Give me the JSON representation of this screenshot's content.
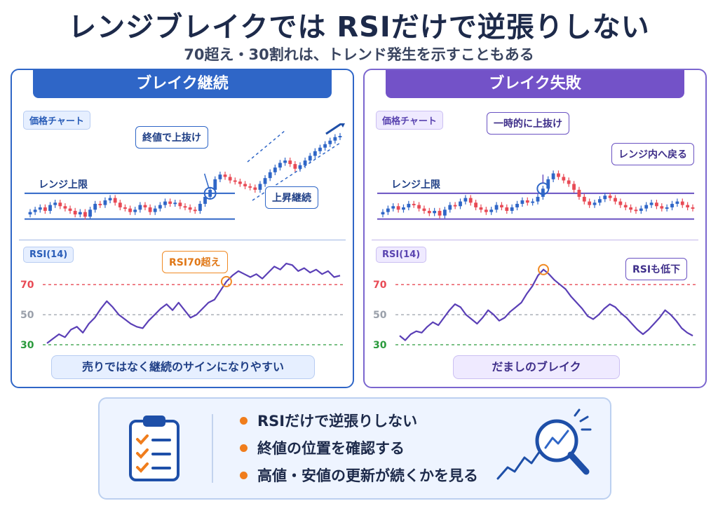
{
  "title": "レンジブレイクでは RSIだけで逆張りしない",
  "subtitle": "70超え・30割れは、トレンド発生を示すこともある",
  "colors": {
    "blue": "#2f66c7",
    "purple": "#7352c8",
    "bull": "#2f66c7",
    "bear": "#e84a55",
    "orange": "#f08a24",
    "rsi_line": "#5a3fb6"
  },
  "left": {
    "header": "ブレイク継続",
    "price_tag": "価格チャート",
    "range_label": "レンジ上限",
    "callout_break": "終値で上抜け",
    "callout_trend": "上昇継続",
    "rsi_tag": "RSI(14)",
    "rsi_callout": "RSI70超え",
    "bottom_text": "売りではなく継続のサインになりやすい"
  },
  "right": {
    "header": "ブレイク失敗",
    "price_tag": "価格チャート",
    "range_label": "レンジ上限",
    "callout_break": "一時的に上抜け",
    "callout_back": "レンジ内へ戻る",
    "rsi_tag": "RSI(14)",
    "rsi_callout": "RSIも低下",
    "bottom_text": "だましのブレイク"
  },
  "summary": {
    "items": [
      "RSIだけで逆張りしない",
      "終値の位置を確認する",
      "高値・安値の更新が続くかを見る"
    ],
    "icons": [
      "clipboard-checklist-icon",
      "magnifier-chart-icon"
    ]
  },
  "chart_data": [
    {
      "type": "line",
      "panel": "left-price",
      "description_series": "close",
      "levels": {
        "range_high": 100
      },
      "series": [
        {
          "values": [
            84,
            86,
            88,
            85,
            90,
            92,
            89,
            87,
            85,
            82,
            84,
            80,
            86,
            91,
            90,
            94,
            96,
            92,
            88,
            87,
            84,
            86,
            90,
            88,
            84,
            87,
            90,
            93,
            91,
            92,
            89,
            88,
            86,
            85,
            91,
            97,
            103,
            112,
            116,
            114,
            111,
            110,
            108,
            106,
            105,
            103,
            108,
            113,
            118,
            122,
            126,
            128,
            125,
            121,
            124,
            128,
            132,
            136,
            139,
            142,
            145,
            148,
            149
          ]
        }
      ]
    },
    {
      "type": "line",
      "panel": "left-rsi",
      "ylim": [
        30,
        85
      ],
      "yticks": [
        70,
        50,
        30
      ],
      "series": [
        {
          "values": [
            31,
            34,
            37,
            35,
            40,
            42,
            38,
            44,
            48,
            54,
            59,
            55,
            50,
            47,
            44,
            42,
            41,
            46,
            50,
            54,
            57,
            53,
            58,
            53,
            48,
            50,
            54,
            58,
            60,
            66,
            72,
            76,
            79,
            77,
            75,
            77,
            74,
            78,
            82,
            80,
            84,
            83,
            79,
            81,
            78,
            80,
            77,
            79,
            75,
            76
          ]
        }
      ]
    },
    {
      "type": "line",
      "panel": "right-price",
      "levels": {
        "range_high": 100
      },
      "series": [
        {
          "values": [
            84,
            87,
            89,
            86,
            88,
            91,
            90,
            87,
            85,
            83,
            85,
            81,
            86,
            90,
            89,
            93,
            96,
            92,
            88,
            86,
            84,
            86,
            90,
            88,
            85,
            88,
            91,
            94,
            92,
            93,
            97,
            104,
            112,
            117,
            114,
            111,
            108,
            103,
            97,
            93,
            90,
            92,
            95,
            98,
            96,
            93,
            90,
            88,
            86,
            85,
            87,
            90,
            92,
            89,
            87,
            88,
            91,
            93,
            90,
            88,
            87
          ]
        }
      ]
    },
    {
      "type": "line",
      "panel": "right-rsi",
      "ylim": [
        30,
        85
      ],
      "yticks": [
        70,
        50,
        30
      ],
      "series": [
        {
          "values": [
            36,
            33,
            37,
            39,
            38,
            42,
            45,
            43,
            48,
            53,
            57,
            55,
            50,
            47,
            44,
            48,
            53,
            50,
            46,
            48,
            52,
            55,
            58,
            64,
            69,
            76,
            80,
            77,
            73,
            70,
            67,
            62,
            58,
            54,
            49,
            47,
            50,
            54,
            57,
            55,
            51,
            48,
            44,
            40,
            37,
            40,
            44,
            48,
            53,
            50,
            46,
            41,
            38,
            36
          ]
        }
      ]
    }
  ]
}
